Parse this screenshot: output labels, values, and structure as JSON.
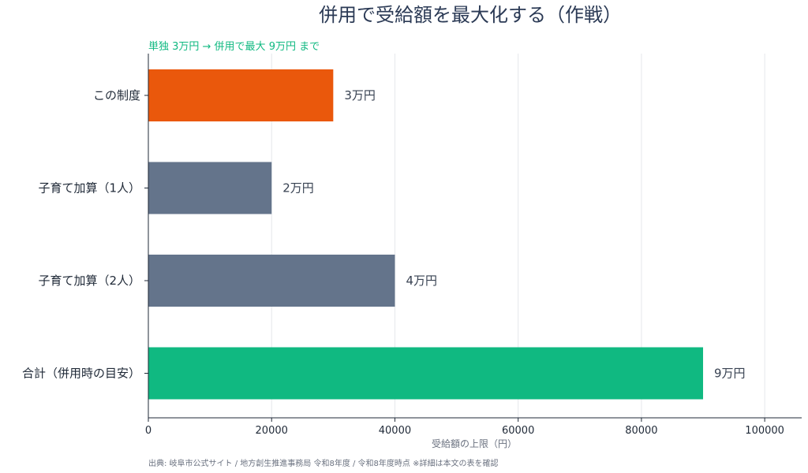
{
  "chart_data": {
    "type": "bar",
    "orientation": "horizontal",
    "title": "併用で受給額を最大化する（作戦）",
    "subtitle": "単独 3万円 → 併用で最大 9万円 まで",
    "categories": [
      "この制度",
      "子育て加算（1人）",
      "子育て加算（2人）",
      "合計（併用時の目安）"
    ],
    "values": [
      30000,
      20000,
      40000,
      90000
    ],
    "value_labels": [
      "3万円",
      "2万円",
      "4万円",
      "9万円"
    ],
    "bar_colors": [
      "#ea580c",
      "#64748b",
      "#64748b",
      "#10b981"
    ],
    "xlabel": "受給額の上限（円）",
    "ylabel": "",
    "xlim": [
      0,
      106000
    ],
    "xticks": [
      0,
      20000,
      40000,
      60000,
      80000,
      100000
    ],
    "xtick_labels": [
      "0",
      "20000",
      "40000",
      "60000",
      "80000",
      "100000"
    ],
    "grid": "vertical",
    "legend": "none"
  },
  "source_note": "出典: 岐阜市公式サイト / 地方創生推進事務局 令和8年度 / 令和8年度時点 ※詳細は本文の表を確認"
}
